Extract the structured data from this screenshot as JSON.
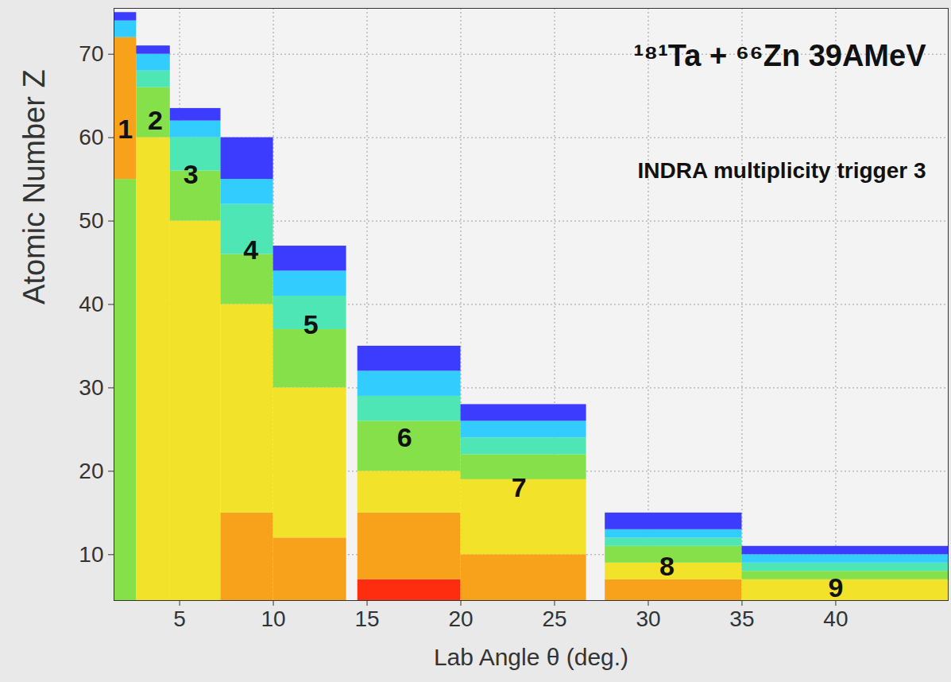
{
  "chart_data": {
    "type": "heatmap",
    "title": "¹⁸¹Ta + ⁶⁶Zn 39AMeV",
    "subtitle": "INDRA multiplicity trigger 3",
    "x_label": "Lab Angle θ (deg.)",
    "y_label": "Atomic Number Z",
    "xlim": [
      1.5,
      46
    ],
    "ylim": [
      4.5,
      75.5
    ],
    "xticks": [
      5,
      10,
      15,
      20,
      25,
      30,
      35,
      40
    ],
    "yticks": [
      10,
      20,
      30,
      40,
      50,
      60,
      70
    ],
    "grid": true,
    "tick_labels": true,
    "color_levels": [
      1,
      2,
      3,
      4,
      5,
      6,
      7
    ],
    "colors": [
      "#3c3cff",
      "#33ccff",
      "#4ee6b4",
      "#86e04a",
      "#f2e22a",
      "#f7a21a",
      "#ff2d10"
    ],
    "rings": [
      {
        "label": "1",
        "label_x": 2.1,
        "label_y": 61,
        "theta": [
          1.5,
          2.7
        ],
        "bands": [
          [
            4.5,
            55,
            4
          ],
          [
            55,
            72,
            6
          ],
          [
            72,
            74,
            2
          ],
          [
            74,
            75,
            1
          ]
        ]
      },
      {
        "label": "2",
        "label_x": 3.7,
        "label_y": 62,
        "theta": [
          2.7,
          4.5
        ],
        "bands": [
          [
            4.5,
            60,
            5
          ],
          [
            60,
            66,
            4
          ],
          [
            66,
            68,
            3
          ],
          [
            68,
            70,
            2
          ],
          [
            70,
            71,
            1
          ]
        ]
      },
      {
        "label": "3",
        "label_x": 5.6,
        "label_y": 55.5,
        "theta": [
          4.5,
          7.2
        ],
        "bands": [
          [
            4.5,
            50,
            5
          ],
          [
            50,
            56,
            4
          ],
          [
            56,
            60,
            3
          ],
          [
            60,
            62,
            2
          ],
          [
            62,
            63.5,
            1
          ]
        ]
      },
      {
        "label": "4",
        "label_x": 8.8,
        "label_y": 46.5,
        "theta": [
          7.2,
          10
        ],
        "bands": [
          [
            4.5,
            15,
            6
          ],
          [
            15,
            40,
            5
          ],
          [
            40,
            46,
            4
          ],
          [
            46,
            52,
            3
          ],
          [
            52,
            55,
            2
          ],
          [
            55,
            60,
            1
          ]
        ]
      },
      {
        "label": "5",
        "label_x": 12,
        "label_y": 37.5,
        "theta": [
          10,
          13.9
        ],
        "bands": [
          [
            4.5,
            12,
            6
          ],
          [
            12,
            30,
            5
          ],
          [
            30,
            37,
            4
          ],
          [
            37,
            41,
            3
          ],
          [
            41,
            44,
            2
          ],
          [
            44,
            47,
            1
          ]
        ]
      },
      {
        "label": "6",
        "label_x": 17,
        "label_y": 24,
        "theta": [
          14.5,
          20
        ],
        "bands": [
          [
            4.5,
            7,
            7
          ],
          [
            7,
            15,
            6
          ],
          [
            15,
            20,
            5
          ],
          [
            20,
            26,
            4
          ],
          [
            26,
            29,
            3
          ],
          [
            29,
            32,
            2
          ],
          [
            32,
            35,
            1
          ]
        ]
      },
      {
        "label": "7",
        "label_x": 23.1,
        "label_y": 18,
        "theta": [
          20,
          26.7
        ],
        "bands": [
          [
            4.5,
            10,
            6
          ],
          [
            10,
            19,
            5
          ],
          [
            19,
            22,
            4
          ],
          [
            22,
            24,
            3
          ],
          [
            24,
            26,
            2
          ],
          [
            26,
            28,
            1
          ]
        ]
      },
      {
        "label": "8",
        "label_x": 31,
        "label_y": 8.5,
        "theta": [
          27.7,
          35
        ],
        "bands": [
          [
            4.5,
            7,
            6
          ],
          [
            7,
            9,
            5
          ],
          [
            9,
            11,
            4
          ],
          [
            11,
            12,
            3
          ],
          [
            12,
            13,
            2
          ],
          [
            13,
            15,
            1
          ]
        ]
      },
      {
        "label": "9",
        "label_x": 40,
        "label_y": 6,
        "theta": [
          35,
          46
        ],
        "bands": [
          [
            4.5,
            7,
            5
          ],
          [
            7,
            8,
            4
          ],
          [
            8,
            9,
            3
          ],
          [
            9,
            10,
            2
          ],
          [
            10,
            11,
            1
          ]
        ]
      }
    ]
  }
}
